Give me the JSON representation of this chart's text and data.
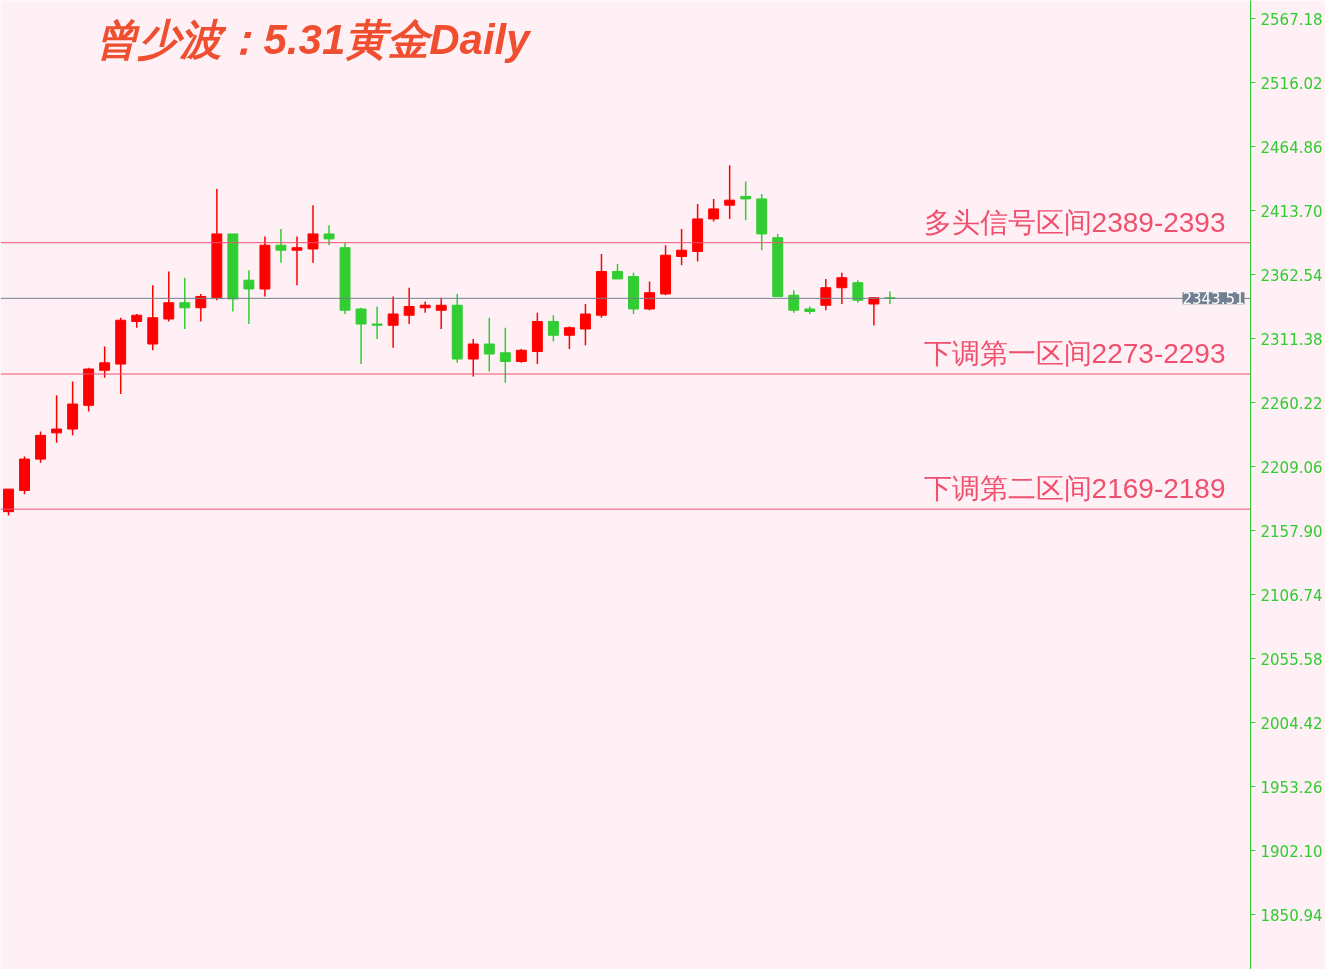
{
  "chart_data": {
    "type": "candlestick",
    "title": "曾少波：5.31黄金Daily",
    "categories": [
      null,
      null,
      null,
      null,
      null,
      null,
      null,
      null,
      null,
      null,
      null,
      null,
      null,
      null,
      null,
      null,
      null,
      null,
      null,
      null,
      null,
      null,
      null,
      null,
      null,
      null,
      null,
      null,
      null,
      null,
      null,
      null,
      null,
      null,
      null,
      null,
      null,
      null,
      null,
      null,
      null,
      null,
      null,
      null,
      null,
      null,
      null,
      null,
      null,
      null,
      null,
      null,
      null,
      null,
      null,
      null,
      null,
      null,
      null,
      null,
      null,
      null,
      null,
      null,
      null,
      null,
      null,
      null,
      null,
      null,
      null,
      null,
      null,
      null,
      null,
      null,
      null,
      null
    ],
    "ohlc": [
      [
        2173,
        2191,
        2170,
        2191
      ],
      [
        2190,
        2217,
        2187,
        2215
      ],
      [
        2215,
        2237,
        2212,
        2234
      ],
      [
        2236,
        2266,
        2228,
        2239
      ],
      [
        2239,
        2277,
        2234,
        2259
      ],
      [
        2258,
        2288,
        2253,
        2287
      ],
      [
        2286,
        2305,
        2280,
        2292
      ],
      [
        2291,
        2328,
        2267,
        2326
      ],
      [
        2325,
        2331,
        2320,
        2330
      ],
      [
        2307,
        2354,
        2302,
        2328
      ],
      [
        2327,
        2365,
        2325,
        2340
      ],
      [
        2340,
        2360,
        2319,
        2336
      ],
      [
        2336,
        2347,
        2325,
        2345
      ],
      [
        2344,
        2431,
        2342,
        2395
      ],
      [
        2395,
        2395,
        2333,
        2343
      ],
      [
        2358,
        2366,
        2323,
        2351
      ],
      [
        2351,
        2393,
        2345,
        2386
      ],
      [
        2386,
        2399,
        2372,
        2382
      ],
      [
        2382,
        2393,
        2354,
        2384
      ],
      [
        2383,
        2418,
        2372,
        2395
      ],
      [
        2395,
        2402,
        2386,
        2391
      ],
      [
        2384,
        2388,
        2331,
        2334
      ],
      [
        2335,
        2336,
        2291,
        2323
      ],
      [
        2323,
        2337,
        2311,
        2322
      ],
      [
        2322,
        2345,
        2304,
        2331
      ],
      [
        2330,
        2352,
        2323,
        2337
      ],
      [
        2336,
        2341,
        2332,
        2338
      ],
      [
        2334,
        2344,
        2319,
        2338
      ],
      [
        2338,
        2347,
        2292,
        2295
      ],
      [
        2295,
        2311,
        2281,
        2307
      ],
      [
        2307,
        2328,
        2285,
        2299
      ],
      [
        2300,
        2320,
        2276,
        2293
      ],
      [
        2293,
        2303,
        2292,
        2302
      ],
      [
        2301,
        2332,
        2291,
        2325
      ],
      [
        2325,
        2330,
        2309,
        2314
      ],
      [
        2314,
        2321,
        2303,
        2320
      ],
      [
        2319,
        2339,
        2306,
        2331
      ],
      [
        2330,
        2379,
        2328,
        2365
      ],
      [
        2365,
        2371,
        2359,
        2359
      ],
      [
        2361,
        2364,
        2331,
        2335
      ],
      [
        2335,
        2357,
        2334,
        2348
      ],
      [
        2347,
        2386,
        2346,
        2378
      ],
      [
        2377,
        2399,
        2370,
        2382
      ],
      [
        2381,
        2419,
        2373,
        2407
      ],
      [
        2407,
        2423,
        2405,
        2415
      ],
      [
        2418,
        2450,
        2407,
        2422
      ],
      [
        2425,
        2437,
        2406,
        2423
      ],
      [
        2423,
        2427,
        2382,
        2395
      ],
      [
        2392,
        2395,
        2345,
        2345
      ],
      [
        2346,
        2350,
        2332,
        2334
      ],
      [
        2335,
        2337,
        2331,
        2333
      ],
      [
        2338,
        2359,
        2334,
        2352
      ],
      [
        2352,
        2364,
        2339,
        2360
      ],
      [
        2356,
        2358,
        2340,
        2342
      ],
      [
        2339,
        2344,
        2322,
        2344
      ],
      [
        2344,
        2349,
        2339,
        2343.5
      ],
      null,
      null,
      null,
      null,
      null,
      null,
      null,
      null,
      null,
      null,
      null,
      null,
      null,
      null,
      null,
      null,
      null,
      null,
      null,
      null,
      null,
      null
    ],
    "colors": [
      "#ff0000",
      "#ff0000",
      "#ff0000",
      "#ff0000",
      "#ff0000",
      "#ff0000",
      "#ff0000",
      "#ff0000",
      "#ff0000",
      "#ff0000",
      "#ff0000",
      "#32cd32",
      "#ff0000",
      "#ff0000",
      "#32cd32",
      "#32cd32",
      "#ff0000",
      "#32cd32",
      "#ff0000",
      "#ff0000",
      "#32cd32",
      "#32cd32",
      "#32cd32",
      "#32cd32",
      "#ff0000",
      "#ff0000",
      "#ff0000",
      "#ff0000",
      "#32cd32",
      "#ff0000",
      "#32cd32",
      "#32cd32",
      "#ff0000",
      "#ff0000",
      "#32cd32",
      "#ff0000",
      "#ff0000",
      "#ff0000",
      "#32cd32",
      "#32cd32",
      "#ff0000",
      "#ff0000",
      "#ff0000",
      "#ff0000",
      "#ff0000",
      "#ff0000",
      "#32cd32",
      "#32cd32",
      "#32cd32",
      "#32cd32",
      "#32cd32",
      "#ff0000",
      "#ff0000",
      "#32cd32",
      "#ff0000",
      "#32cd32",
      null,
      null,
      null,
      null,
      null,
      null,
      null,
      null,
      null,
      null,
      null,
      null,
      null,
      null,
      null,
      null,
      null,
      null,
      null,
      null,
      null,
      null
    ],
    "ylim": [
      1807,
      2581.6
    ],
    "yticks": [
      1850.94,
      {
        "value": 1902.1,
        "label": "1902.10"
      },
      1953.26,
      2004.42,
      2055.58,
      2106.74,
      {
        "value": 2157.9,
        "label": "2157.90"
      },
      2209.06,
      2260.22,
      2311.38,
      2362.54,
      {
        "value": 2413.7,
        "label": "2413.70"
      },
      2464.86,
      2516.02,
      2567.18
    ],
    "ref_lines": [
      {
        "axis": "y",
        "value": 2343.51,
        "label": "2343.51",
        "color": "#708090"
      },
      {
        "axis": "y",
        "value": 2388,
        "label": "多头信号区间2389-2393",
        "color": "#f0506e"
      },
      {
        "axis": "y",
        "value": 2283,
        "label": "下调第一区间2273-2293",
        "color": "#f0506e"
      },
      {
        "axis": "y",
        "value": 2175,
        "label": "下调第二区间2169-2189",
        "color": "#f0506e"
      }
    ],
    "grid": false
  }
}
